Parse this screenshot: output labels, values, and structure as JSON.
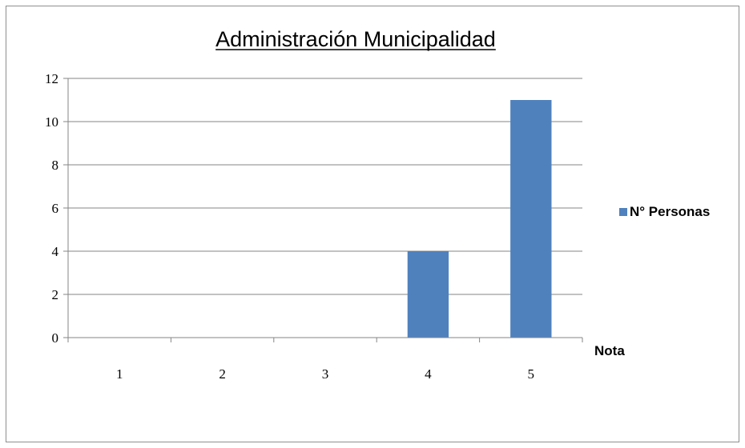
{
  "chart_data": {
    "type": "bar",
    "title": "Administración Municipalidad",
    "xlabel": "Nota",
    "ylabel": "",
    "categories": [
      "1",
      "2",
      "3",
      "4",
      "5"
    ],
    "series": [
      {
        "name": "N° Personas",
        "values": [
          0,
          0,
          0,
          4,
          11
        ],
        "color": "#4f81bd"
      }
    ],
    "ylim": [
      0,
      12
    ],
    "yticks": [
      0,
      2,
      4,
      6,
      8,
      10,
      12
    ],
    "grid": true,
    "legend_position": "right"
  }
}
